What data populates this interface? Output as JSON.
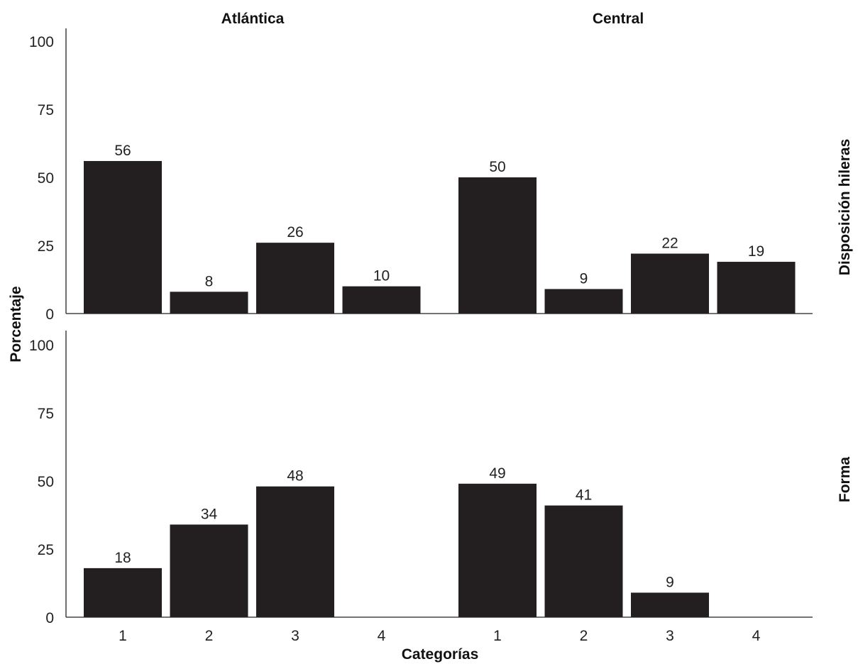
{
  "chart_data": {
    "type": "bar",
    "facet_columns": [
      "Atlántica",
      "Central"
    ],
    "facet_rows": [
      "Disposición hileras",
      "Forma"
    ],
    "categories": [
      "1",
      "2",
      "3",
      "4"
    ],
    "xlabel": "Categorías",
    "ylabel": "Porcentaje",
    "ylim": [
      0,
      100
    ],
    "yticks": [
      0,
      25,
      50,
      75,
      100
    ],
    "bar_color": "#231f20",
    "grid": false,
    "panels": [
      {
        "row": "Disposición hileras",
        "column": "Atlántica",
        "values": [
          56,
          8,
          26,
          10
        ],
        "labels": [
          "56",
          "8",
          "26",
          "10"
        ]
      },
      {
        "row": "Disposición hileras",
        "column": "Central",
        "values": [
          50,
          9,
          22,
          19
        ],
        "labels": [
          "50",
          "9",
          "22",
          "19"
        ]
      },
      {
        "row": "Forma",
        "column": "Atlántica",
        "values": [
          18,
          34,
          48,
          null
        ],
        "labels": [
          "18",
          "34",
          "48",
          ""
        ]
      },
      {
        "row": "Forma",
        "column": "Central",
        "values": [
          49,
          41,
          9,
          null
        ],
        "labels": [
          "49",
          "41",
          "9",
          ""
        ]
      }
    ]
  }
}
